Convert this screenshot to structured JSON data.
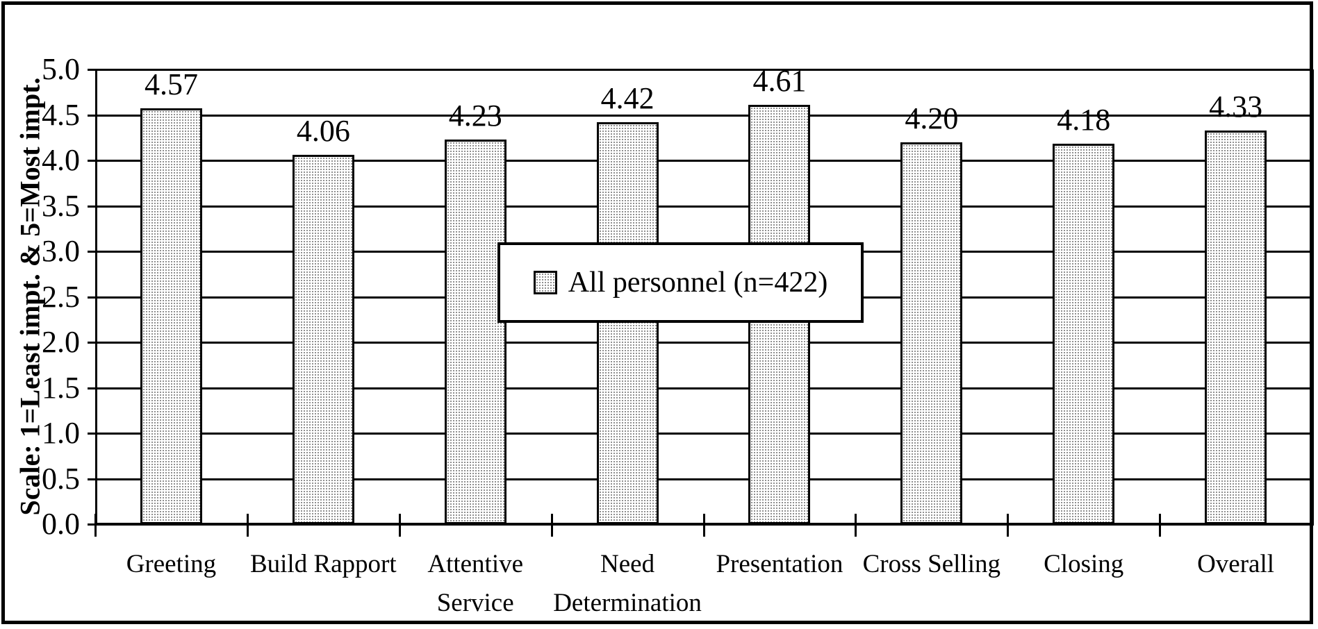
{
  "chart_data": {
    "type": "bar",
    "title": "",
    "categories": [
      "Greeting",
      "Build Rapport",
      "Attentive Service",
      "Need Determination",
      "Presentation",
      "Cross Selling",
      "Closing",
      "Overall"
    ],
    "series": [
      {
        "name": "All personnel (n=422)",
        "values": [
          4.57,
          4.06,
          4.23,
          4.42,
          4.61,
          4.2,
          4.18,
          4.33
        ]
      }
    ],
    "value_labels": [
      "4.57",
      "4.06",
      "4.23",
      "4.42",
      "4.61",
      "4.20",
      "4.18",
      "4.33"
    ],
    "xlabel": "",
    "ylabel": "Scale: 1=Least impt. & 5=Most impt.",
    "ylim": [
      0.0,
      5.0
    ],
    "ytick_step": 0.5,
    "ytick_labels": [
      "0.0",
      "0.5",
      "1.0",
      "1.5",
      "2.0",
      "2.5",
      "3.0",
      "3.5",
      "4.0",
      "4.5",
      "5.0"
    ],
    "grid": true,
    "legend": {
      "label": "All personnel (n=422)",
      "position": "center-of-plot",
      "swatch": "dotted-gray-square"
    },
    "colors": {
      "line": "#000000",
      "text": "#000000",
      "background": "#ffffff",
      "bar_border": "#000000",
      "bar_pattern_dot": "#8f8f8f",
      "bar_pattern_base": "#ffffff"
    }
  }
}
